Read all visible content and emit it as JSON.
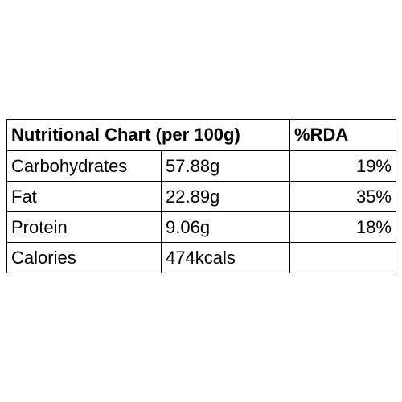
{
  "header": {
    "title": "Nutritional Chart (per 100g)",
    "rda": "%RDA"
  },
  "table": {
    "rows": [
      [
        "Carbohydrates",
        "57.88g",
        "19%"
      ],
      [
        "Fat",
        "22.89g",
        "35%"
      ],
      [
        "Protein",
        "9.06g",
        "18%"
      ],
      [
        "Calories",
        "474kcals"
      ]
    ]
  }
}
